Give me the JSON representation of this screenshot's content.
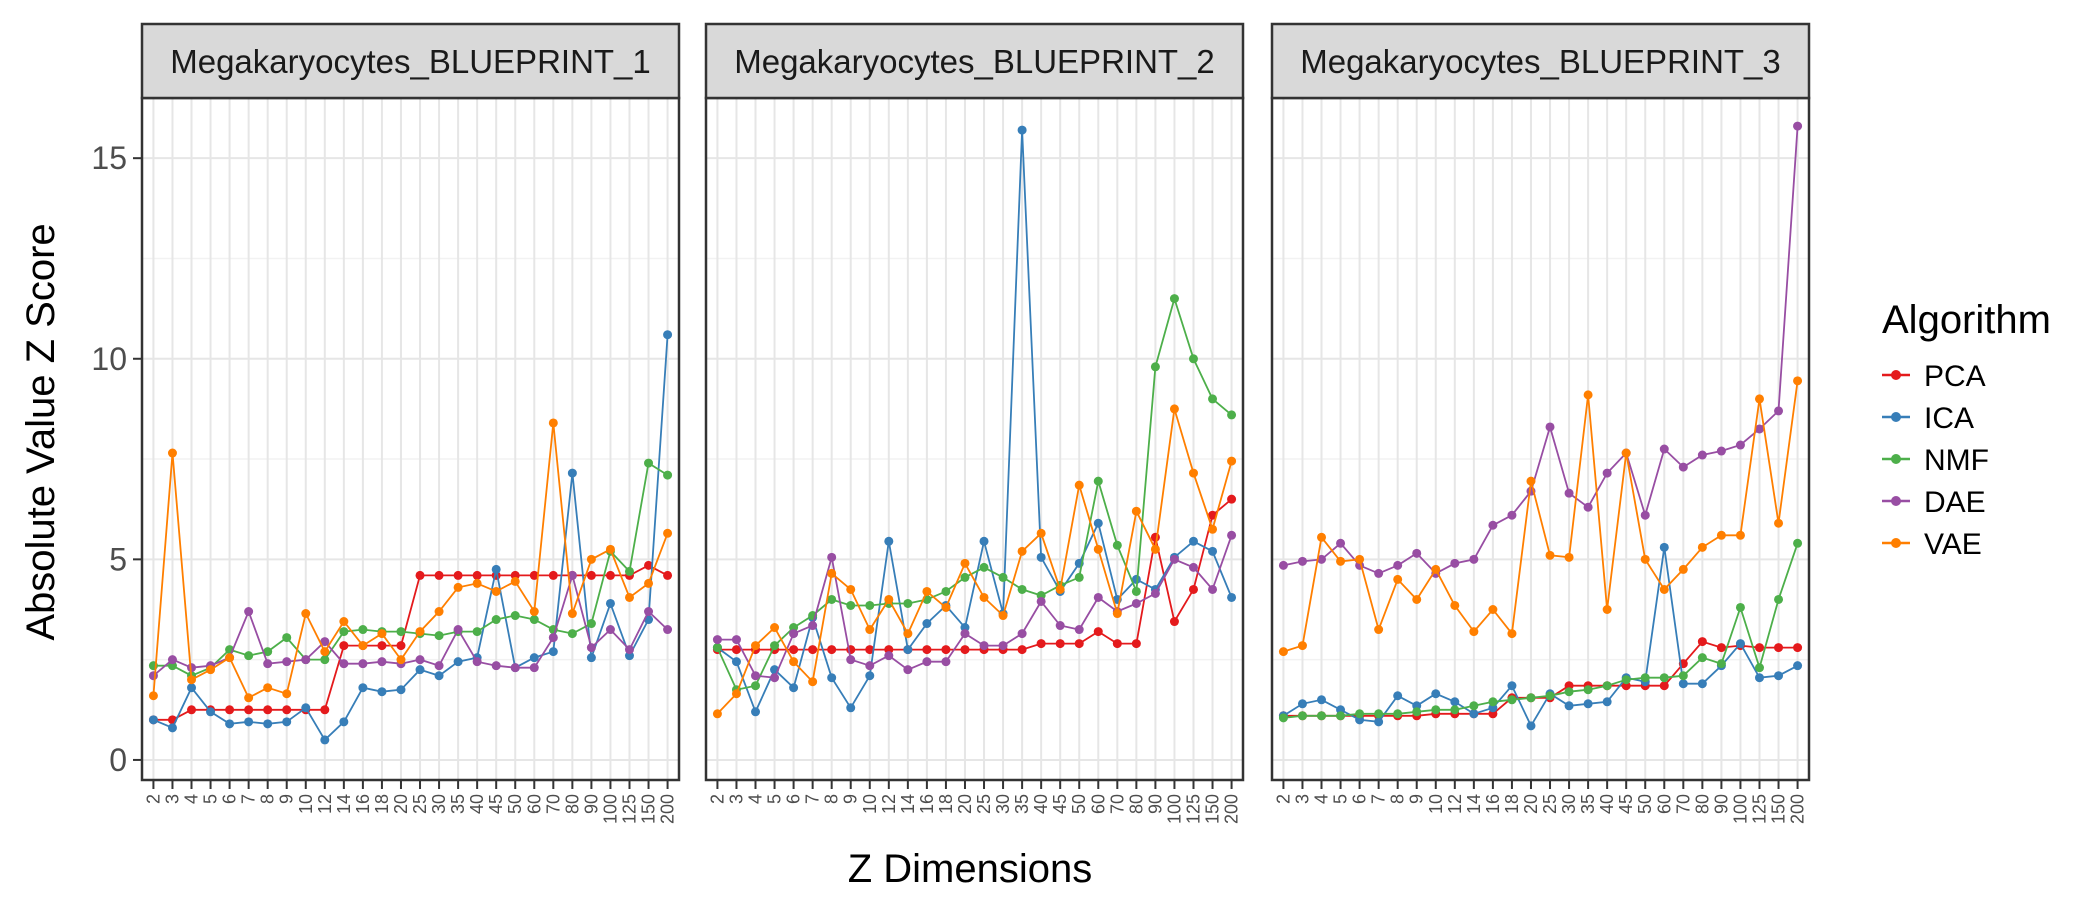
{
  "chart_data": {
    "type": "line",
    "ylabel": "Absolute Value Z Score",
    "xlabel": "Z Dimensions",
    "ylim": [
      -0.5,
      16.5
    ],
    "yticks": [
      0,
      5,
      10,
      15
    ],
    "grid": true,
    "legend": {
      "title": "Algorithm",
      "position": "right"
    },
    "categories": [
      "2",
      "3",
      "4",
      "5",
      "6",
      "7",
      "8",
      "9",
      "10",
      "12",
      "14",
      "16",
      "18",
      "20",
      "25",
      "30",
      "35",
      "40",
      "45",
      "50",
      "60",
      "70",
      "80",
      "90",
      "100",
      "125",
      "150",
      "200"
    ],
    "colors": {
      "PCA": "#e41a1c",
      "ICA": "#377eb8",
      "NMF": "#4daf4a",
      "DAE": "#984ea3",
      "VAE": "#ff7f00"
    },
    "panels": [
      {
        "title": "Megakaryocytes_BLUEPRINT_1",
        "series": [
          {
            "name": "PCA",
            "values": [
              1.0,
              1.0,
              1.25,
              1.25,
              1.25,
              1.25,
              1.25,
              1.25,
              1.25,
              1.25,
              2.85,
              2.85,
              2.85,
              2.85,
              4.6,
              4.6,
              4.6,
              4.6,
              4.6,
              4.6,
              4.6,
              4.6,
              4.6,
              4.6,
              4.6,
              4.6,
              4.85,
              4.6
            ]
          },
          {
            "name": "ICA",
            "values": [
              1.0,
              0.8,
              1.8,
              1.2,
              0.9,
              0.95,
              0.9,
              0.95,
              1.3,
              0.5,
              0.95,
              1.8,
              1.7,
              1.75,
              2.25,
              2.1,
              2.45,
              2.55,
              4.75,
              2.3,
              2.55,
              2.7,
              7.15,
              2.55,
              3.9,
              2.6,
              3.5,
              10.6
            ]
          },
          {
            "name": "NMF",
            "values": [
              2.35,
              2.35,
              2.1,
              2.3,
              2.75,
              2.6,
              2.7,
              3.05,
              2.5,
              2.5,
              3.2,
              3.25,
              3.2,
              3.2,
              3.15,
              3.1,
              3.2,
              3.2,
              3.5,
              3.6,
              3.5,
              3.25,
              3.15,
              3.4,
              5.2,
              4.7,
              7.4,
              7.1
            ]
          },
          {
            "name": "DAE",
            "values": [
              2.1,
              2.5,
              2.3,
              2.35,
              2.55,
              3.7,
              2.4,
              2.45,
              2.5,
              2.95,
              2.4,
              2.4,
              2.45,
              2.4,
              2.5,
              2.35,
              3.25,
              2.45,
              2.35,
              2.3,
              2.3,
              3.05,
              4.6,
              2.8,
              3.25,
              2.75,
              3.7,
              3.25
            ]
          },
          {
            "name": "VAE",
            "values": [
              1.6,
              7.65,
              2.0,
              2.25,
              2.55,
              1.55,
              1.8,
              1.65,
              3.65,
              2.7,
              3.45,
              2.85,
              3.15,
              2.5,
              3.2,
              3.7,
              4.3,
              4.4,
              4.2,
              4.45,
              3.7,
              8.4,
              3.65,
              5.0,
              5.25,
              4.05,
              4.4,
              5.65
            ]
          }
        ]
      },
      {
        "title": "Megakaryocytes_BLUEPRINT_2",
        "series": [
          {
            "name": "PCA",
            "values": [
              2.75,
              2.75,
              2.75,
              2.75,
              2.75,
              2.75,
              2.75,
              2.75,
              2.75,
              2.75,
              2.75,
              2.75,
              2.75,
              2.75,
              2.75,
              2.75,
              2.75,
              2.9,
              2.9,
              2.9,
              3.2,
              2.9,
              2.9,
              5.55,
              3.45,
              4.25,
              6.1,
              6.5
            ]
          },
          {
            "name": "ICA",
            "values": [
              2.8,
              2.45,
              1.2,
              2.25,
              1.8,
              3.55,
              2.05,
              1.3,
              2.1,
              5.45,
              2.75,
              3.4,
              3.85,
              3.3,
              5.45,
              3.65,
              15.7,
              5.05,
              4.2,
              4.9,
              5.9,
              4.0,
              4.5,
              4.25,
              5.05,
              5.45,
              5.2,
              4.05
            ]
          },
          {
            "name": "NMF",
            "values": [
              2.8,
              1.75,
              1.85,
              2.85,
              3.3,
              3.6,
              4.0,
              3.85,
              3.85,
              3.9,
              3.9,
              4.0,
              4.2,
              4.55,
              4.8,
              4.55,
              4.25,
              4.1,
              4.35,
              4.55,
              6.95,
              5.35,
              4.2,
              9.8,
              11.5,
              10.0,
              9.0,
              8.6
            ]
          },
          {
            "name": "DAE",
            "values": [
              3.0,
              3.0,
              2.1,
              2.05,
              3.15,
              3.35,
              5.05,
              2.5,
              2.35,
              2.6,
              2.25,
              2.45,
              2.45,
              3.15,
              2.85,
              2.85,
              3.15,
              3.95,
              3.35,
              3.25,
              4.05,
              3.7,
              3.9,
              4.15,
              5.0,
              4.8,
              4.25,
              5.6
            ]
          },
          {
            "name": "VAE",
            "values": [
              1.15,
              1.65,
              2.85,
              3.3,
              2.45,
              1.95,
              4.65,
              4.25,
              3.25,
              4.0,
              3.15,
              4.2,
              3.8,
              4.9,
              4.05,
              3.6,
              5.2,
              5.65,
              4.25,
              6.85,
              5.25,
              3.65,
              6.2,
              5.25,
              8.75,
              7.15,
              5.75,
              7.45
            ]
          }
        ]
      },
      {
        "title": "Megakaryocytes_BLUEPRINT_3",
        "series": [
          {
            "name": "PCA",
            "values": [
              1.1,
              1.1,
              1.1,
              1.1,
              1.1,
              1.1,
              1.1,
              1.1,
              1.15,
              1.15,
              1.15,
              1.15,
              1.55,
              1.55,
              1.55,
              1.85,
              1.85,
              1.85,
              1.85,
              1.85,
              1.85,
              2.4,
              2.95,
              2.8,
              2.85,
              2.8,
              2.8,
              2.8
            ]
          },
          {
            "name": "ICA",
            "values": [
              1.1,
              1.4,
              1.5,
              1.25,
              1.0,
              0.95,
              1.6,
              1.35,
              1.65,
              1.45,
              1.15,
              1.3,
              1.85,
              0.85,
              1.65,
              1.35,
              1.4,
              1.45,
              2.05,
              1.95,
              5.3,
              1.9,
              1.9,
              2.35,
              2.9,
              2.05,
              2.1,
              2.35
            ]
          },
          {
            "name": "NMF",
            "values": [
              1.05,
              1.1,
              1.1,
              1.1,
              1.15,
              1.15,
              1.15,
              1.2,
              1.25,
              1.25,
              1.35,
              1.45,
              1.5,
              1.55,
              1.6,
              1.7,
              1.75,
              1.85,
              2.0,
              2.05,
              2.05,
              2.1,
              2.55,
              2.4,
              3.8,
              2.3,
              4.0,
              5.4
            ]
          },
          {
            "name": "DAE",
            "values": [
              4.85,
              4.95,
              5.0,
              5.4,
              4.85,
              4.65,
              4.85,
              5.15,
              4.65,
              4.9,
              5.0,
              5.85,
              6.1,
              6.7,
              8.3,
              6.65,
              6.3,
              7.15,
              7.65,
              6.1,
              7.75,
              7.3,
              7.6,
              7.7,
              7.85,
              8.25,
              8.7,
              15.8
            ]
          },
          {
            "name": "VAE",
            "values": [
              2.7,
              2.85,
              5.55,
              4.95,
              5.0,
              3.25,
              4.5,
              4.0,
              4.75,
              3.85,
              3.2,
              3.75,
              3.15,
              6.95,
              5.1,
              5.05,
              9.1,
              3.75,
              7.65,
              5.0,
              4.25,
              4.75,
              5.3,
              5.6,
              5.6,
              9.0,
              5.9,
              9.45
            ]
          }
        ]
      }
    ]
  }
}
